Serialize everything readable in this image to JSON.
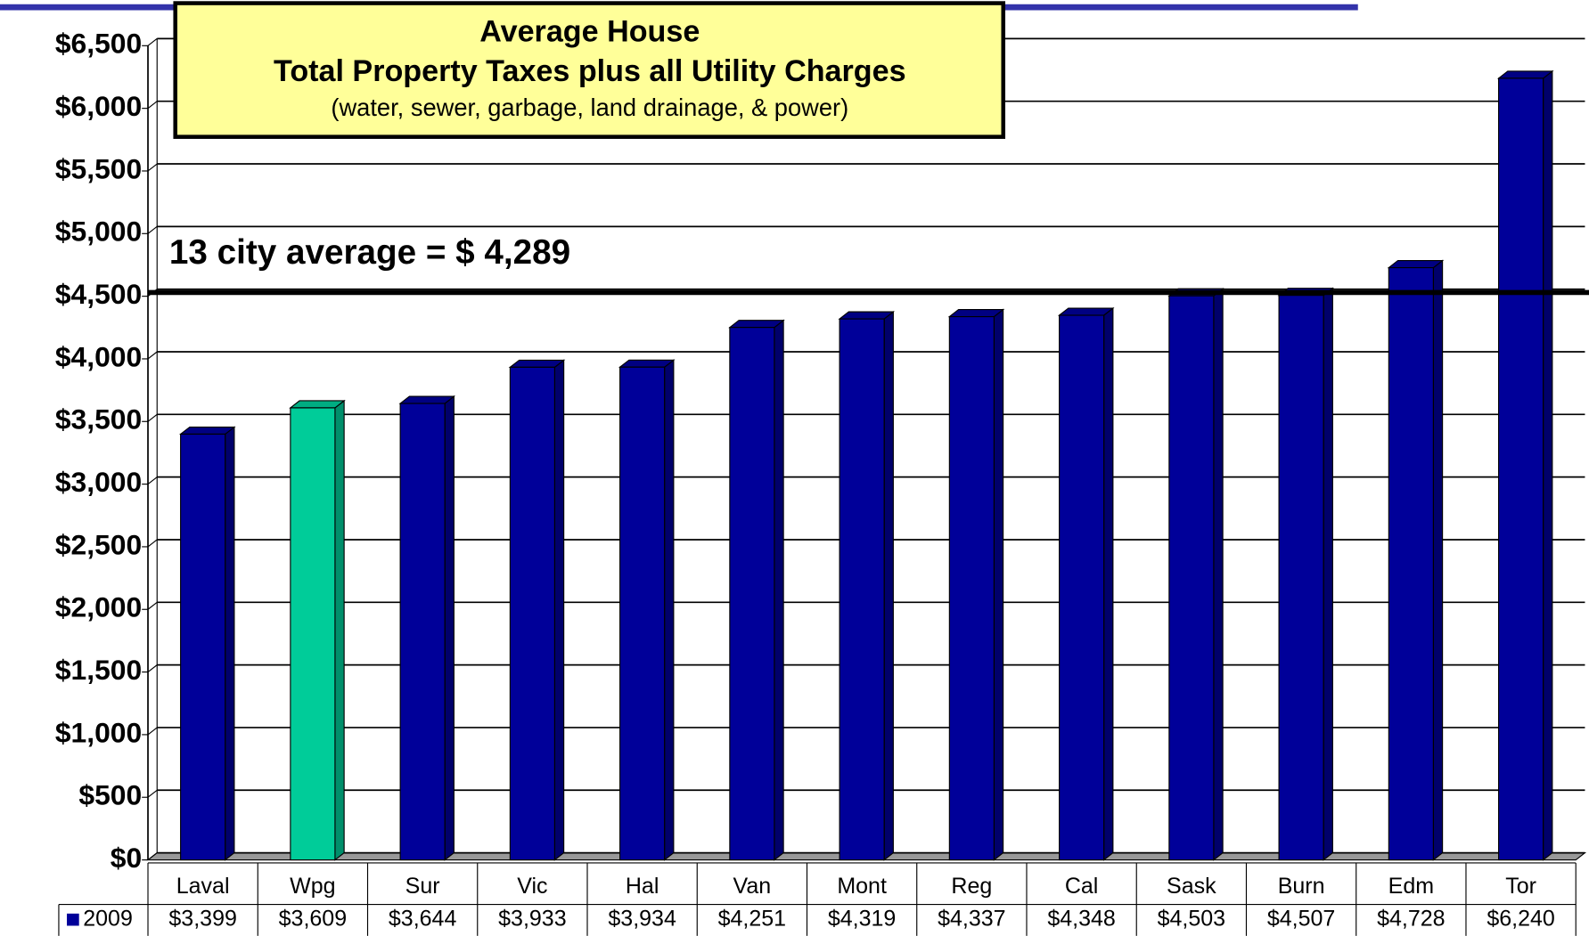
{
  "chart_data": {
    "type": "bar",
    "title": "Average House",
    "subtitle": "Total Property Taxes plus all Utility Charges",
    "note": "(water, sewer, garbage, land drainage, & power)",
    "annotation": "13 city average = $ 4,289",
    "reference_line": 4530,
    "categories": [
      "Laval",
      "Wpg",
      "Sur",
      "Vic",
      "Hal",
      "Van",
      "Mont",
      "Reg",
      "Cal",
      "Sask",
      "Burn",
      "Edm",
      "Tor"
    ],
    "series": [
      {
        "name": "2009",
        "color": "#000099",
        "values": [
          3399,
          3609,
          3644,
          3933,
          3934,
          4251,
          4319,
          4337,
          4348,
          4503,
          4507,
          4728,
          6240
        ],
        "value_labels": [
          "$3,399",
          "$3,609",
          "$3,644",
          "$3,933",
          "$3,934",
          "$4,251",
          "$4,319",
          "$4,337",
          "$4,348",
          "$4,503",
          "$4,507",
          "$4,728",
          "$6,240"
        ],
        "colors": [
          "#000099",
          "#00cc99",
          "#000099",
          "#000099",
          "#000099",
          "#000099",
          "#000099",
          "#000099",
          "#000099",
          "#000099",
          "#000099",
          "#000099",
          "#000099"
        ]
      }
    ],
    "ylim": [
      0,
      6500
    ],
    "yticks": [
      {
        "value": 0,
        "label": "$0"
      },
      {
        "value": 500,
        "label": "$500"
      },
      {
        "value": 1000,
        "label": "$1,000"
      },
      {
        "value": 1500,
        "label": "$1,500"
      },
      {
        "value": 2000,
        "label": "$2,000"
      },
      {
        "value": 2500,
        "label": "$2,500"
      },
      {
        "value": 3000,
        "label": "$3,000"
      },
      {
        "value": 3500,
        "label": "$3,500"
      },
      {
        "value": 4000,
        "label": "$4,000"
      },
      {
        "value": 4500,
        "label": "$4,500"
      },
      {
        "value": 5000,
        "label": "$5,000"
      },
      {
        "value": 5500,
        "label": "$5,500"
      },
      {
        "value": 6000,
        "label": "$6,000"
      },
      {
        "value": 6500,
        "label": "$6,500"
      }
    ],
    "grid": true
  }
}
